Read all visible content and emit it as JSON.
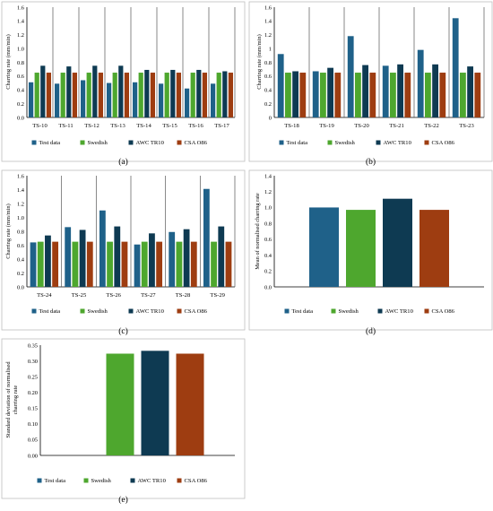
{
  "colors": {
    "test_data": "#1f6189",
    "swedish": "#4ea72e",
    "awc_tr10": "#0e3a52",
    "csa_o86": "#9e3d11"
  },
  "legend": [
    "Test data",
    "Swedish",
    "AWC TR10",
    "CSA O86"
  ],
  "chart_data": [
    {
      "panel_label": "(a)",
      "type": "bar",
      "ylabel": "Charring rate (mm/min)",
      "ylim": [
        0,
        1.6
      ],
      "yticks": [
        "0.0",
        "0.2",
        "0.4",
        "0.6",
        "0.8",
        "1.0",
        "1.2",
        "1.4",
        "1.6"
      ],
      "categories": [
        "TS-10",
        "TS-11",
        "TS-12",
        "TS-13",
        "TS-14",
        "TS-15",
        "TS-16",
        "TS-17"
      ],
      "group_separators": true,
      "series": [
        {
          "name": "Test data",
          "color_key": "test_data",
          "values": [
            0.51,
            0.49,
            0.54,
            0.5,
            0.51,
            0.49,
            0.42,
            0.49
          ]
        },
        {
          "name": "Swedish",
          "color_key": "swedish",
          "values": [
            0.65,
            0.65,
            0.65,
            0.65,
            0.65,
            0.65,
            0.65,
            0.65
          ]
        },
        {
          "name": "AWC TR10",
          "color_key": "awc_tr10",
          "values": [
            0.75,
            0.74,
            0.75,
            0.75,
            0.69,
            0.69,
            0.69,
            0.67
          ]
        },
        {
          "name": "CSA O86",
          "color_key": "csa_o86",
          "values": [
            0.65,
            0.65,
            0.65,
            0.65,
            0.65,
            0.65,
            0.65,
            0.65
          ]
        }
      ]
    },
    {
      "panel_label": "(b)",
      "type": "bar",
      "ylabel": "Charring rate (mm/min)",
      "ylim": [
        0,
        1.6
      ],
      "yticks": [
        "0",
        "0.2",
        "0.4",
        "0.6",
        "0.8",
        "1",
        "1.2",
        "1.4",
        "1.6"
      ],
      "categories": [
        "TS-18",
        "TS-19",
        "TS-20",
        "TS-21",
        "TS-22",
        "TS-23"
      ],
      "group_separators": true,
      "series": [
        {
          "name": "Test data",
          "color_key": "test_data",
          "values": [
            0.92,
            0.67,
            1.18,
            0.75,
            0.98,
            1.44
          ]
        },
        {
          "name": "Swedish",
          "color_key": "swedish",
          "values": [
            0.65,
            0.65,
            0.65,
            0.65,
            0.65,
            0.65
          ]
        },
        {
          "name": "AWC TR10",
          "color_key": "awc_tr10",
          "values": [
            0.67,
            0.72,
            0.76,
            0.77,
            0.77,
            0.74
          ]
        },
        {
          "name": "CSA O86",
          "color_key": "csa_o86",
          "values": [
            0.65,
            0.65,
            0.65,
            0.65,
            0.65,
            0.65
          ]
        }
      ]
    },
    {
      "panel_label": "(c)",
      "type": "bar",
      "ylabel": "Charring rate (mm/min)",
      "ylim": [
        0,
        1.6
      ],
      "yticks": [
        "0.0",
        "0.2",
        "0.4",
        "0.6",
        "0.8",
        "1.0",
        "1.2",
        "1.4",
        "1.6"
      ],
      "categories": [
        "TS-24",
        "TS-25",
        "TS-26",
        "TS-27",
        "TS-28",
        "TS-29"
      ],
      "group_separators": true,
      "series": [
        {
          "name": "Test data",
          "color_key": "test_data",
          "values": [
            0.64,
            0.86,
            1.1,
            0.61,
            0.79,
            1.41
          ]
        },
        {
          "name": "Swedish",
          "color_key": "swedish",
          "values": [
            0.65,
            0.65,
            0.65,
            0.65,
            0.65,
            0.65
          ]
        },
        {
          "name": "AWC TR10",
          "color_key": "awc_tr10",
          "values": [
            0.74,
            0.82,
            0.87,
            0.77,
            0.83,
            0.87
          ]
        },
        {
          "name": "CSA O86",
          "color_key": "csa_o86",
          "values": [
            0.65,
            0.65,
            0.65,
            0.65,
            0.65,
            0.65
          ]
        }
      ]
    },
    {
      "panel_label": "(d)",
      "type": "bar",
      "ylabel": "Mean of normalised charring rate",
      "ylim": [
        0,
        1.4
      ],
      "yticks": [
        "0.0",
        "0.2",
        "0.4",
        "0.6",
        "0.8",
        "1.0",
        "1.2",
        "1.4"
      ],
      "categories": [
        ""
      ],
      "group_separators": false,
      "series": [
        {
          "name": "Test data",
          "color_key": "test_data",
          "values": [
            1.0
          ]
        },
        {
          "name": "Swedish",
          "color_key": "swedish",
          "values": [
            0.97
          ]
        },
        {
          "name": "AWC TR10",
          "color_key": "awc_tr10",
          "values": [
            1.11
          ]
        },
        {
          "name": "CSA O86",
          "color_key": "csa_o86",
          "values": [
            0.97
          ]
        }
      ]
    },
    {
      "panel_label": "(e)",
      "type": "bar",
      "ylabel": "Standard deviation of normalised charring rate",
      "ylim": [
        0,
        0.35
      ],
      "yticks": [
        "0.00",
        "0.05",
        "0.10",
        "0.15",
        "0.20",
        "0.25",
        "0.30",
        "0.35"
      ],
      "categories": [
        ""
      ],
      "group_separators": false,
      "series": [
        {
          "name": "Test data",
          "color_key": "test_data",
          "values": [
            0.0
          ]
        },
        {
          "name": "Swedish",
          "color_key": "swedish",
          "values": [
            0.323
          ]
        },
        {
          "name": "AWC TR10",
          "color_key": "awc_tr10",
          "values": [
            0.332
          ]
        },
        {
          "name": "CSA O86",
          "color_key": "csa_o86",
          "values": [
            0.323
          ]
        }
      ]
    }
  ]
}
